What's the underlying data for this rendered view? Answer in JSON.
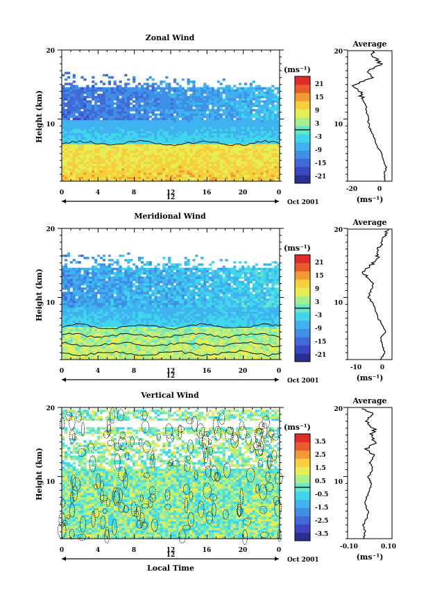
{
  "colorbar_colors": [
    "#2b2f8f",
    "#3a46c4",
    "#3f6ad8",
    "#3f8fe6",
    "#3fb2f0",
    "#3fd6ec",
    "#66e8c8",
    "#a8ee8c",
    "#e6ee55",
    "#f6cf3a",
    "#f39a33",
    "#ea5b2c",
    "#e02b2b"
  ],
  "chart_data": [
    {
      "type": "heatmap",
      "title": "Zonal Wind",
      "ylabel": "Height (km)",
      "xlabel": "",
      "x_ticks": [
        "0",
        "4",
        "8",
        "12",
        "16",
        "20",
        "0"
      ],
      "y_ticks": [
        "20",
        "10"
      ],
      "date_label": "Oct 2001",
      "day_label": "12",
      "xlim": [
        0,
        24
      ],
      "ylim": [
        1,
        20
      ],
      "colorbar": {
        "unit": "(ms⁻¹)",
        "labels": [
          "21",
          "15",
          "9",
          "3",
          "-3",
          "-9",
          "-15",
          "-21"
        ],
        "min": -24,
        "max": 24
      },
      "pattern": {
        "core_top": 14.5,
        "core_bottom": 9.8,
        "core_value": -15,
        "pos_top": 6.5,
        "pos_value": 8,
        "noise": 3,
        "contour_height": 6.5
      },
      "profile": {
        "title": "Average",
        "unit": "(ms⁻¹)",
        "x_ticks": [
          "-20",
          "0"
        ],
        "y_ticks": [
          "20",
          "10"
        ],
        "xlim": [
          -27,
          12
        ],
        "heights": [
          1,
          2,
          3,
          4,
          5,
          6,
          7,
          8,
          9,
          10,
          11,
          12,
          13,
          14,
          15,
          16,
          17,
          18,
          19,
          20
        ],
        "values": [
          6,
          5,
          7,
          4,
          3,
          -1,
          -3,
          -6,
          -8,
          -9,
          -10,
          -11,
          -14,
          -16,
          -22,
          -4,
          -8,
          2,
          -3,
          -6
        ]
      }
    },
    {
      "type": "heatmap",
      "title": "Meridional Wind",
      "ylabel": "Height (km)",
      "xlabel": "",
      "x_ticks": [
        "0",
        "4",
        "8",
        "12",
        "16",
        "20",
        "0"
      ],
      "y_ticks": [
        "20",
        "10"
      ],
      "date_label": "Oct 2001",
      "day_label": "12",
      "xlim": [
        0,
        24
      ],
      "ylim": [
        1,
        20
      ],
      "colorbar": {
        "unit": "(ms⁻¹)",
        "labels": [
          "21",
          "15",
          "9",
          "3",
          "-3",
          "-9",
          "-15",
          "-21"
        ],
        "min": -24,
        "max": 24
      },
      "pattern": {
        "core_top": 14.2,
        "core_bottom": 8.5,
        "core_value": -10,
        "pos_top": 5.8,
        "pos_value": 3,
        "noise": 4,
        "contour_height": 5.8
      },
      "profile": {
        "title": "Average",
        "unit": "(ms⁻¹)",
        "x_ticks": [
          "-10",
          "0"
        ],
        "y_ticks": [
          "20",
          "10"
        ],
        "xlim": [
          -15,
          4
        ],
        "heights": [
          1,
          2,
          3,
          4,
          5,
          6,
          7,
          8,
          9,
          10,
          11,
          12,
          13,
          14,
          15,
          16,
          17,
          18,
          19,
          20
        ],
        "values": [
          -1,
          1,
          0,
          -1,
          1,
          0,
          -2,
          -3,
          -4,
          -6,
          -5,
          -4,
          -7,
          -8,
          -4,
          -2,
          -3,
          0,
          1,
          2
        ]
      }
    },
    {
      "type": "heatmap",
      "title": "Vertical Wind",
      "ylabel": "Height (km)",
      "xlabel": "Local Time",
      "x_ticks": [
        "0",
        "4",
        "8",
        "12",
        "16",
        "20",
        "0"
      ],
      "y_ticks": [
        "20",
        "10"
      ],
      "date_label": "Oct 2001",
      "day_label": "12",
      "xlim": [
        0,
        24
      ],
      "ylim": [
        1,
        20
      ],
      "colorbar": {
        "unit": "(ms⁻¹)",
        "labels": [
          "3.5",
          "2.5",
          "1.5",
          "0.5",
          "-0.5",
          "-1.5",
          "-2.5",
          "-3.5"
        ],
        "min": -4,
        "max": 4
      },
      "pattern": {
        "core_top": 0,
        "core_bottom": 0,
        "core_value": 0,
        "pos_top": 0,
        "pos_value": 0,
        "noise": 1.1,
        "contour_height": 0
      },
      "profile": {
        "title": "Average",
        "unit": "(ms⁻¹)",
        "x_ticks": [
          "-0.10",
          "0.10"
        ],
        "y_ticks": [
          "20",
          "10"
        ],
        "xlim": [
          -0.14,
          0.14
        ],
        "heights": [
          1,
          2,
          3,
          4,
          5,
          6,
          7,
          8,
          9,
          10,
          11,
          12,
          13,
          14,
          15,
          16,
          17,
          18,
          19,
          20
        ],
        "values": [
          -0.04,
          -0.03,
          -0.04,
          -0.02,
          -0.01,
          -0.03,
          -0.02,
          0.0,
          0.01,
          -0.01,
          0.02,
          0.0,
          0.03,
          -0.02,
          0.04,
          0.01,
          0.03,
          -0.03,
          0.02,
          -0.05
        ]
      }
    }
  ]
}
